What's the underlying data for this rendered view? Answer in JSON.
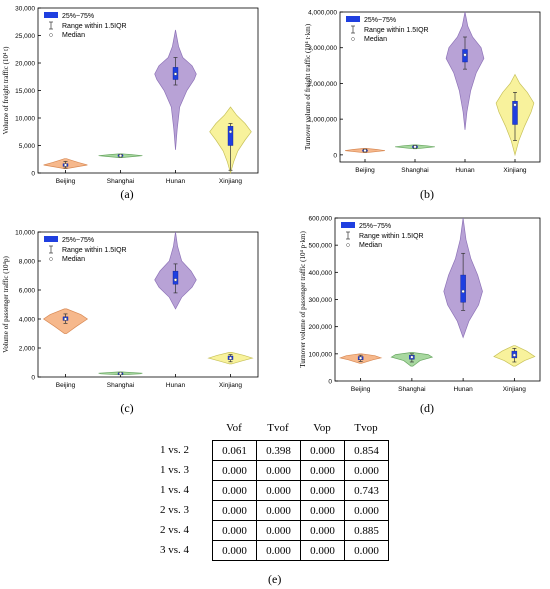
{
  "colors": {
    "categories": [
      "#f6b88c",
      "#a8d8a0",
      "#b8a2d6",
      "#f8f29c"
    ],
    "category_edges": [
      "#d98a55",
      "#6aa863",
      "#8e73b8",
      "#c8c25a"
    ],
    "box": "#1f3fe0",
    "median": "#ffffff"
  },
  "legend": {
    "box_label": "25%~75%",
    "range_label": "Range within 1.5IQR",
    "median_label": "Median"
  },
  "chart_data": [
    {
      "panel": "(a)",
      "type": "violin",
      "categories": [
        "Beijing",
        "Shanghai",
        "Hunan",
        "Xinjiang"
      ],
      "ylabel": "Volume of freight traffic (10⁴ t)",
      "ylim": [
        0,
        30000
      ],
      "yticks": [
        0,
        5000,
        10000,
        15000,
        20000,
        25000,
        30000
      ],
      "ytick_labels": [
        "0",
        "5,000",
        "10,000",
        "15,000",
        "20,000",
        "25,000",
        "30,000"
      ],
      "violins": [
        {
          "min": 800,
          "max": 2600,
          "q1": 1200,
          "q3": 1700,
          "median": 1450,
          "wlo": 900,
          "whi": 2100,
          "width": 0.95,
          "shape": [
            [
              800,
              0.05
            ],
            [
              1100,
              0.5
            ],
            [
              1450,
              1.0
            ],
            [
              1900,
              0.6
            ],
            [
              2400,
              0.2
            ],
            [
              2600,
              0.05
            ]
          ]
        },
        {
          "min": 2800,
          "max": 3500,
          "q1": 3050,
          "q3": 3300,
          "median": 3150,
          "wlo": 2900,
          "whi": 3400,
          "width": 0.95,
          "shape": [
            [
              2800,
              0.05
            ],
            [
              3000,
              0.6
            ],
            [
              3150,
              1.0
            ],
            [
              3350,
              0.5
            ],
            [
              3500,
              0.05
            ]
          ]
        },
        {
          "min": 4200,
          "max": 26000,
          "q1": 17000,
          "q3": 19200,
          "median": 18000,
          "wlo": 16000,
          "whi": 21000,
          "width": 0.9,
          "shape": [
            [
              4200,
              0.0
            ],
            [
              8000,
              0.08
            ],
            [
              12000,
              0.2
            ],
            [
              15000,
              0.55
            ],
            [
              17000,
              0.9
            ],
            [
              18000,
              1.0
            ],
            [
              19500,
              0.8
            ],
            [
              21000,
              0.35
            ],
            [
              23000,
              0.15
            ],
            [
              26000,
              0.0
            ]
          ]
        },
        {
          "min": 0,
          "max": 12000,
          "q1": 5000,
          "q3": 8500,
          "median": 7500,
          "wlo": 500,
          "whi": 9000,
          "width": 0.9,
          "shape": [
            [
              0,
              0.0
            ],
            [
              2000,
              0.15
            ],
            [
              4000,
              0.35
            ],
            [
              6000,
              0.7
            ],
            [
              7500,
              1.0
            ],
            [
              9000,
              0.7
            ],
            [
              10500,
              0.3
            ],
            [
              12000,
              0.0
            ]
          ]
        }
      ]
    },
    {
      "panel": "(b)",
      "type": "violin",
      "categories": [
        "Beijing",
        "Shanghai",
        "Hunan",
        "Xinjiang"
      ],
      "ylabel": "Turnover volume of freight traffic (10⁴ t·km)",
      "ylim": [
        -200000,
        4000000
      ],
      "yticks": [
        0,
        1000000,
        2000000,
        3000000,
        4000000
      ],
      "ytick_labels": [
        "0",
        "1,000,000",
        "2,000,000",
        "3,000,000",
        "4,000,000"
      ],
      "violins": [
        {
          "min": 60000,
          "max": 180000,
          "q1": 100000,
          "q3": 140000,
          "median": 120000,
          "wlo": 80000,
          "whi": 160000,
          "width": 0.95,
          "shape": [
            [
              60000,
              0.05
            ],
            [
              100000,
              0.7
            ],
            [
              120000,
              1.0
            ],
            [
              150000,
              0.6
            ],
            [
              180000,
              0.05
            ]
          ]
        },
        {
          "min": 170000,
          "max": 280000,
          "q1": 200000,
          "q3": 250000,
          "median": 225000,
          "wlo": 185000,
          "whi": 265000,
          "width": 0.95,
          "shape": [
            [
              170000,
              0.05
            ],
            [
              200000,
              0.6
            ],
            [
              225000,
              1.0
            ],
            [
              255000,
              0.6
            ],
            [
              280000,
              0.05
            ]
          ]
        },
        {
          "min": 700000,
          "max": 4000000,
          "q1": 2600000,
          "q3": 2950000,
          "median": 2800000,
          "wlo": 2400000,
          "whi": 3300000,
          "width": 0.9,
          "shape": [
            [
              700000,
              0.0
            ],
            [
              1200000,
              0.1
            ],
            [
              1800000,
              0.3
            ],
            [
              2300000,
              0.6
            ],
            [
              2700000,
              1.0
            ],
            [
              3000000,
              0.85
            ],
            [
              3300000,
              0.4
            ],
            [
              3600000,
              0.15
            ],
            [
              4000000,
              0.0
            ]
          ]
        },
        {
          "min": 0,
          "max": 2250000,
          "q1": 850000,
          "q3": 1500000,
          "median": 1400000,
          "wlo": 400000,
          "whi": 1750000,
          "width": 0.9,
          "shape": [
            [
              0,
              0.0
            ],
            [
              400000,
              0.2
            ],
            [
              800000,
              0.5
            ],
            [
              1200000,
              0.85
            ],
            [
              1450000,
              1.0
            ],
            [
              1750000,
              0.65
            ],
            [
              2000000,
              0.25
            ],
            [
              2250000,
              0.0
            ]
          ]
        }
      ]
    },
    {
      "panel": "(c)",
      "type": "violin",
      "categories": [
        "Beijing",
        "Shanghai",
        "Hunan",
        "Xinjiang"
      ],
      "ylabel": "Volume of passenger traffic (10⁴p)",
      "ylim": [
        0,
        10000
      ],
      "yticks": [
        0,
        2000,
        4000,
        6000,
        8000,
        10000
      ],
      "ytick_labels": [
        "0",
        "2,000",
        "4,000",
        "6,000",
        "8,000",
        "10,000"
      ],
      "violins": [
        {
          "min": 3000,
          "max": 4700,
          "q1": 3900,
          "q3": 4150,
          "median": 4000,
          "wlo": 3700,
          "whi": 4350,
          "width": 0.95,
          "shape": [
            [
              3000,
              0.05
            ],
            [
              3500,
              0.5
            ],
            [
              4000,
              1.0
            ],
            [
              4300,
              0.7
            ],
            [
              4700,
              0.05
            ]
          ]
        },
        {
          "min": 150,
          "max": 350,
          "q1": 200,
          "q3": 280,
          "median": 240,
          "wlo": 170,
          "whi": 320,
          "width": 0.95,
          "shape": [
            [
              150,
              0.05
            ],
            [
              220,
              0.9
            ],
            [
              260,
              1.0
            ],
            [
              350,
              0.05
            ]
          ]
        },
        {
          "min": 4700,
          "max": 10000,
          "q1": 6400,
          "q3": 7300,
          "median": 6700,
          "wlo": 5800,
          "whi": 7800,
          "width": 0.9,
          "shape": [
            [
              4700,
              0.0
            ],
            [
              5500,
              0.3
            ],
            [
              6200,
              0.8
            ],
            [
              6700,
              1.0
            ],
            [
              7300,
              0.75
            ],
            [
              8000,
              0.3
            ],
            [
              9000,
              0.1
            ],
            [
              10000,
              0.0
            ]
          ]
        },
        {
          "min": 900,
          "max": 1700,
          "q1": 1200,
          "q3": 1450,
          "median": 1300,
          "wlo": 1050,
          "whi": 1550,
          "width": 0.95,
          "shape": [
            [
              900,
              0.05
            ],
            [
              1100,
              0.5
            ],
            [
              1300,
              1.0
            ],
            [
              1500,
              0.6
            ],
            [
              1700,
              0.05
            ]
          ]
        }
      ]
    },
    {
      "panel": "(d)",
      "type": "violin",
      "categories": [
        "Beijing",
        "Shanghai",
        "Hunan",
        "Xinjiang"
      ],
      "ylabel": "Turnover volume of passenger traffic (10⁴ p·km)",
      "ylim": [
        0,
        600000
      ],
      "yticks": [
        0,
        100000,
        200000,
        300000,
        400000,
        500000,
        600000
      ],
      "ytick_labels": [
        "0",
        "100,000",
        "200,000",
        "300,000",
        "400,000",
        "500,000",
        "600,000"
      ],
      "violins": [
        {
          "min": 65000,
          "max": 100000,
          "q1": 78000,
          "q3": 90000,
          "median": 84000,
          "wlo": 72000,
          "whi": 95000,
          "width": 0.95,
          "shape": [
            [
              65000,
              0.05
            ],
            [
              78000,
              0.6
            ],
            [
              85000,
              1.0
            ],
            [
              93000,
              0.7
            ],
            [
              100000,
              0.05
            ]
          ]
        },
        {
          "min": 55000,
          "max": 105000,
          "q1": 80000,
          "q3": 95000,
          "median": 88000,
          "wlo": 70000,
          "whi": 100000,
          "width": 0.95,
          "shape": [
            [
              55000,
              0.05
            ],
            [
              75000,
              0.4
            ],
            [
              88000,
              1.0
            ],
            [
              97000,
              0.8
            ],
            [
              105000,
              0.05
            ]
          ]
        },
        {
          "min": 160000,
          "max": 600000,
          "q1": 290000,
          "q3": 390000,
          "median": 330000,
          "wlo": 260000,
          "whi": 470000,
          "width": 0.9,
          "shape": [
            [
              160000,
              0.0
            ],
            [
              220000,
              0.3
            ],
            [
              280000,
              0.8
            ],
            [
              330000,
              1.0
            ],
            [
              390000,
              0.75
            ],
            [
              450000,
              0.4
            ],
            [
              520000,
              0.15
            ],
            [
              600000,
              0.0
            ]
          ]
        },
        {
          "min": 55000,
          "max": 130000,
          "q1": 85000,
          "q3": 110000,
          "median": 95000,
          "wlo": 70000,
          "whi": 120000,
          "width": 0.95,
          "shape": [
            [
              55000,
              0.05
            ],
            [
              75000,
              0.5
            ],
            [
              90000,
              1.0
            ],
            [
              110000,
              0.6
            ],
            [
              130000,
              0.05
            ]
          ]
        }
      ]
    },
    {
      "panel": "(e)",
      "type": "table",
      "columns": [
        "Vof",
        "Tvof",
        "Vop",
        "Tvop"
      ],
      "rows": [
        {
          "label": "1 vs. 2",
          "values": [
            "0.061",
            "0.398",
            "0.000",
            "0.854"
          ]
        },
        {
          "label": "1 vs. 3",
          "values": [
            "0.000",
            "0.000",
            "0.000",
            "0.000"
          ]
        },
        {
          "label": "1 vs. 4",
          "values": [
            "0.000",
            "0.000",
            "0.000",
            "0.743"
          ]
        },
        {
          "label": "2 vs. 3",
          "values": [
            "0.000",
            "0.000",
            "0.000",
            "0.000"
          ]
        },
        {
          "label": "2 vs. 4",
          "values": [
            "0.000",
            "0.000",
            "0.000",
            "0.885"
          ]
        },
        {
          "label": "3 vs. 4",
          "values": [
            "0.000",
            "0.000",
            "0.000",
            "0.000"
          ]
        }
      ]
    }
  ]
}
